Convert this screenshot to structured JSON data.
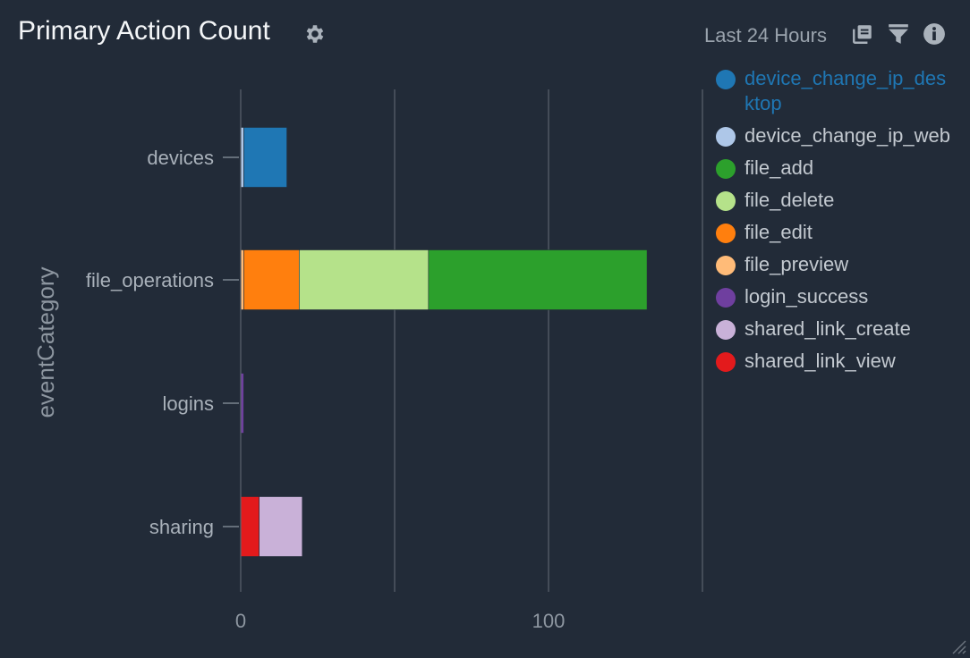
{
  "header": {
    "title": "Primary Action Count",
    "time_range": "Last 24 Hours",
    "icons": [
      "gear-icon",
      "copy-icon",
      "filter-icon",
      "info-icon"
    ]
  },
  "colors": {
    "background": "#222b38",
    "highlight": "#1f77b4"
  },
  "chart_data": {
    "type": "bar",
    "orientation": "horizontal",
    "stacked": true,
    "ylabel": "eventCategory",
    "xlabel": "",
    "categories": [
      "devices",
      "file_operations",
      "logins",
      "sharing"
    ],
    "xlim": [
      0,
      150
    ],
    "xticks": [
      0,
      100
    ],
    "grid": true,
    "legend_position": "right",
    "series": [
      {
        "name": "device_change_ip_desktop",
        "color": "#1f77b4",
        "values": [
          14,
          0,
          0,
          0
        ]
      },
      {
        "name": "device_change_ip_web",
        "color": "#aec7e8",
        "values": [
          1,
          0,
          0,
          0
        ]
      },
      {
        "name": "file_add",
        "color": "#2ca02c",
        "values": [
          0,
          71,
          0,
          0
        ]
      },
      {
        "name": "file_delete",
        "color": "#b5e28a",
        "values": [
          0,
          42,
          0,
          0
        ]
      },
      {
        "name": "file_edit",
        "color": "#ff7f0e",
        "values": [
          0,
          18,
          0,
          0
        ]
      },
      {
        "name": "file_preview",
        "color": "#ffbb78",
        "values": [
          0,
          1,
          0,
          0
        ]
      },
      {
        "name": "login_success",
        "color": "#6f3f9f",
        "values": [
          0,
          0,
          1,
          0
        ]
      },
      {
        "name": "shared_link_create",
        "color": "#c9b1d8",
        "values": [
          0,
          0,
          0,
          14
        ]
      },
      {
        "name": "shared_link_view",
        "color": "#e31a1c",
        "values": [
          0,
          0,
          0,
          6
        ]
      }
    ],
    "stack_order": [
      "device_change_ip_web",
      "device_change_ip_desktop",
      "file_preview",
      "file_edit",
      "file_delete",
      "file_add",
      "login_success",
      "shared_link_view",
      "shared_link_create"
    ]
  }
}
